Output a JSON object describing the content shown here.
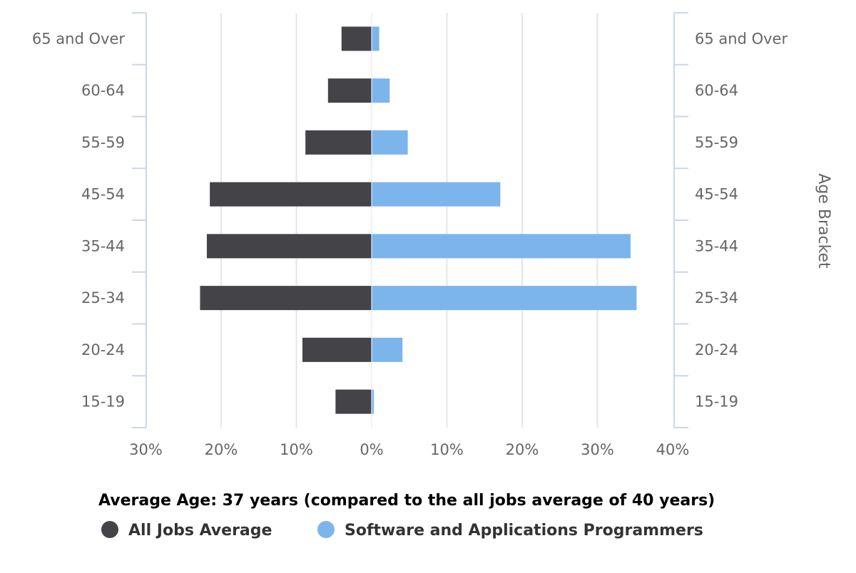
{
  "chart_data": {
    "type": "bar",
    "orientation": "horizontal",
    "layout": "population-pyramid",
    "categories": [
      "65 and Over",
      "60-64",
      "55-59",
      "45-54",
      "35-44",
      "25-34",
      "20-24",
      "15-19"
    ],
    "series": [
      {
        "name": "All Jobs Average",
        "values": [
          4.0,
          5.8,
          8.8,
          21.5,
          21.9,
          22.8,
          9.2,
          4.8
        ],
        "side": "left",
        "color": "#434348"
      },
      {
        "name": "Software and Applications Programmers",
        "values": [
          1.0,
          2.4,
          4.8,
          17.1,
          34.4,
          35.2,
          4.1,
          0.3
        ],
        "side": "right",
        "color": "#7cb5ec"
      }
    ],
    "x_ticks": [
      "30%",
      "20%",
      "10%",
      "0%",
      "10%",
      "20%",
      "30%",
      "40%"
    ],
    "xlim": [
      -30,
      40
    ],
    "y_axis_title": "Age Bracket",
    "caption": "Average Age: 37 years (compared to the all jobs average of 40 years)",
    "grid": true,
    "legend_position": "bottom-left"
  },
  "colors": {
    "axis": "#ccd6eb",
    "grid": "#e6e6e6",
    "text": "#666666"
  }
}
